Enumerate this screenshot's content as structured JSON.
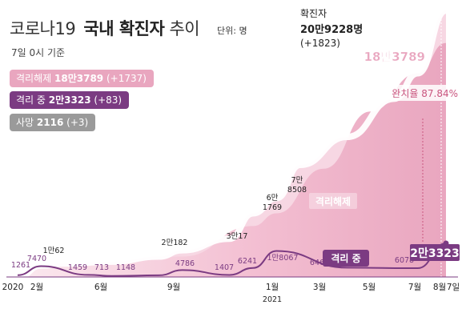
{
  "header": {
    "title_prefix": "코로나19",
    "title_bold": "국내 확진자",
    "title_suffix": "추이",
    "unit": "단위: 명",
    "as_of": "7일 0시 기준"
  },
  "legend": [
    {
      "name": "격리해제",
      "value": "18만3789",
      "change": "(+1737)",
      "color": "#e9a6bf"
    },
    {
      "name": "격리 중",
      "value": "2만3323",
      "change": "(+83)",
      "color": "#7b3b82"
    },
    {
      "name": "사망",
      "value": "2116",
      "change": "(+3)",
      "color": "#9a9a9a"
    }
  ],
  "callouts": {
    "total_label": "확진자",
    "total_value": "20만9228명",
    "total_change": "(+1823)",
    "released_value": "18만3789",
    "rate_label": "완치율 87.84%",
    "released_area_label": "격리해제",
    "isolated_line_label": "격리 중",
    "isolated_value": "2만3323"
  },
  "chart_data": {
    "type": "area",
    "x_ticks": [
      {
        "label": "2020",
        "sub": ""
      },
      {
        "label": "2월",
        "sub": ""
      },
      {
        "label": "6월",
        "sub": ""
      },
      {
        "label": "9월",
        "sub": ""
      },
      {
        "label": "1월",
        "sub": "2021"
      },
      {
        "label": "3월",
        "sub": ""
      },
      {
        "label": "5월",
        "sub": ""
      },
      {
        "label": "7월",
        "sub": ""
      },
      {
        "label": "8월",
        "sub": ""
      },
      {
        "label": "7일",
        "sub": ""
      }
    ],
    "series": [
      {
        "name": "확진자",
        "color": "#f7d7e3",
        "points": [
          {
            "x": "2020-02",
            "y": 0
          },
          {
            "x": "2020-03",
            "y": 9000
          },
          {
            "x": "2020-04",
            "y": 10600
          },
          {
            "x": "2020-06",
            "y": 12000
          },
          {
            "x": "2020-08",
            "y": 16000
          },
          {
            "x": "2020-09",
            "y": 21000
          },
          {
            "x": "2020-11",
            "y": 30000
          },
          {
            "x": "2020-12",
            "y": 50000
          },
          {
            "x": "2021-01",
            "y": 62000
          },
          {
            "x": "2021-02",
            "y": 88000
          },
          {
            "x": "2021-04",
            "y": 110000
          },
          {
            "x": "2021-06",
            "y": 140000
          },
          {
            "x": "2021-07",
            "y": 160000
          },
          {
            "x": "2021-08-07",
            "y": 209228
          }
        ]
      },
      {
        "name": "격리해제",
        "color": "#e9a6bf",
        "points": [
          {
            "x": "2020-02",
            "y": 0
          },
          {
            "x": "2020-03",
            "y": 7470
          },
          {
            "x": "2020-06",
            "y": 11000
          },
          {
            "x": "2020-09",
            "y": 16000
          },
          {
            "x": "2020-12",
            "y": 40000
          },
          {
            "x": "2021-01",
            "y": 50000
          },
          {
            "x": "2021-03",
            "y": 85000
          },
          {
            "x": "2021-05",
            "y": 130000
          },
          {
            "x": "2021-07",
            "y": 160000
          },
          {
            "x": "2021-08-07",
            "y": 183789
          }
        ]
      },
      {
        "name": "격리 중",
        "color": "#7b3b82",
        "points": [
          {
            "x": "2020-02",
            "y": 1261
          },
          {
            "x": "2020-03",
            "y": 7470
          },
          {
            "x": "2020-05",
            "y": 1459
          },
          {
            "x": "2020-06",
            "y": 713
          },
          {
            "x": "2020-08",
            "y": 1148
          },
          {
            "x": "2020-09",
            "y": 4786
          },
          {
            "x": "2020-11",
            "y": 1407
          },
          {
            "x": "2020-12",
            "y": 6241
          },
          {
            "x": "2021-01",
            "y": 18067
          },
          {
            "x": "2021-04",
            "y": 6462
          },
          {
            "x": "2021-07",
            "y": 6078
          },
          {
            "x": "2021-08-07",
            "y": 23323
          }
        ]
      }
    ],
    "labels": [
      {
        "text": "1261",
        "kind": "isolated"
      },
      {
        "text": "7470",
        "kind": "isolated"
      },
      {
        "text": "1만62",
        "kind": "total"
      },
      {
        "text": "1459",
        "kind": "isolated"
      },
      {
        "text": "713",
        "kind": "isolated"
      },
      {
        "text": "1148",
        "kind": "isolated"
      },
      {
        "text": "2만182",
        "kind": "total"
      },
      {
        "text": "4786",
        "kind": "isolated"
      },
      {
        "text": "1407",
        "kind": "isolated"
      },
      {
        "text": "3만17",
        "kind": "total"
      },
      {
        "text": "6241",
        "kind": "isolated"
      },
      {
        "text": "6만1769",
        "kind": "total"
      },
      {
        "text": "1만8067",
        "kind": "isolated"
      },
      {
        "text": "7만8508",
        "kind": "total"
      },
      {
        "text": "6462",
        "kind": "isolated"
      },
      {
        "text": "6078",
        "kind": "isolated"
      }
    ]
  }
}
